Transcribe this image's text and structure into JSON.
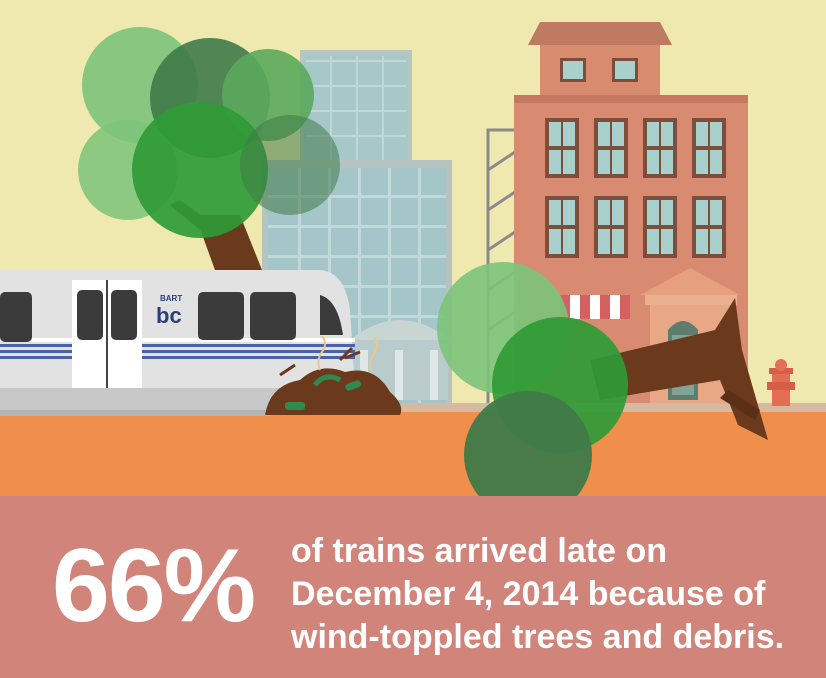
{
  "colors": {
    "sky": "#efe9b0",
    "ground": "#f08f4c",
    "banner": "#d1847a",
    "text": "#ffffff",
    "brick": "#d88a6c",
    "glass": "#9bc8cc",
    "train": "#e2e2e2",
    "stripe": "#4a62a8",
    "trunk": "#6b3a1c",
    "leaf_light": "#7cc37a",
    "leaf_mid": "#2f9b36",
    "leaf_dark": "#3f7a49"
  },
  "icons": [
    "tree-icon",
    "fallen-tree-icon",
    "train-icon",
    "bart-logo-icon",
    "fire-hydrant-icon",
    "debris-pile-icon"
  ],
  "train": {
    "logo_small": "BART",
    "logo_big": "bc"
  },
  "stat": {
    "value": "66%"
  },
  "caption": {
    "line1": "of trains arrived late on",
    "line2": "December 4, 2014 because of",
    "line3": "wind-toppled trees and debris."
  }
}
